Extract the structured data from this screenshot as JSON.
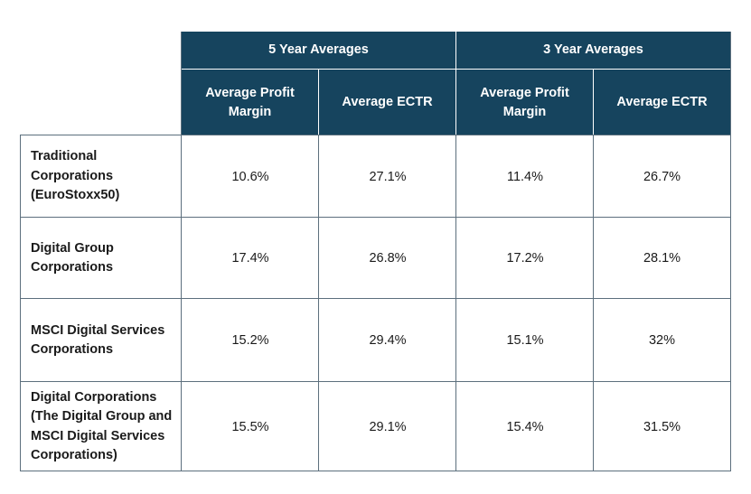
{
  "table": {
    "group_headers": [
      "5 Year Averages",
      "3 Year Averages"
    ],
    "column_headers": [
      "Average Profit Margin",
      "Average ECTR",
      "Average Profit Margin",
      "Average ECTR"
    ],
    "rows": [
      {
        "label": "Traditional Corporations (EuroStoxx50)",
        "values": [
          "10.6%",
          "27.1%",
          "11.4%",
          "26.7%"
        ]
      },
      {
        "label": "Digital Group Corporations",
        "values": [
          "17.4%",
          "26.8%",
          "17.2%",
          "28.1%"
        ]
      },
      {
        "label": "MSCI Digital Services Corporations",
        "values": [
          "15.2%",
          "29.4%",
          "15.1%",
          "32%"
        ]
      },
      {
        "label": "Digital Corporations (The Digital Group and MSCI Digital Services Corporations)",
        "values": [
          "15.5%",
          "29.1%",
          "15.4%",
          "31.5%"
        ]
      }
    ],
    "colors": {
      "header_bg": "#16445e",
      "header_text": "#ffffff",
      "grid_line": "#5c6f7d"
    }
  }
}
